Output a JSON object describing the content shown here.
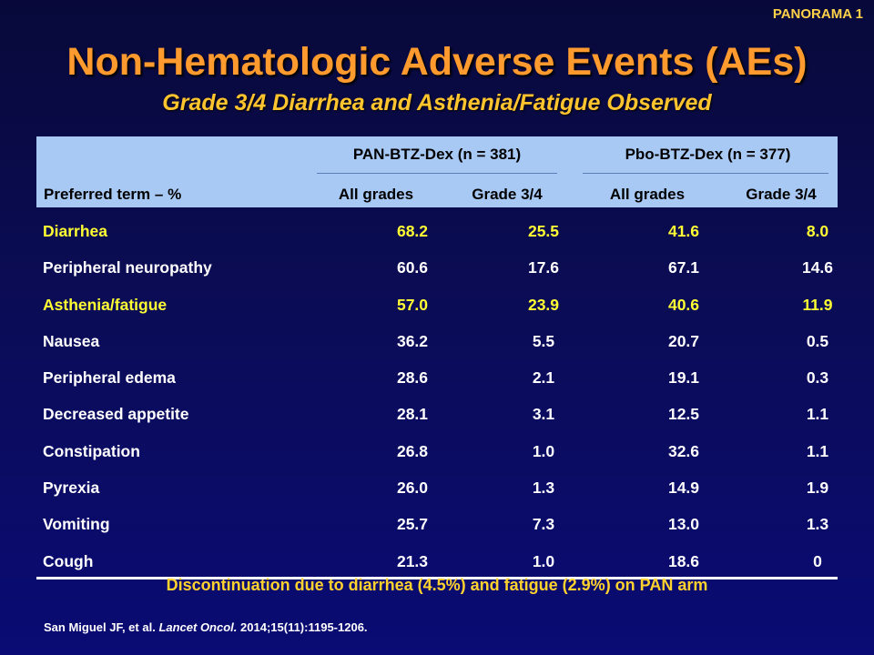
{
  "tag": "PANORAMA 1",
  "title": "Non-Hematologic Adverse Events (AEs)",
  "subtitle": "Grade 3/4 Diarrhea and Asthenia/Fatigue Observed",
  "table": {
    "group_headers": [
      "PAN-BTZ-Dex (n = 381)",
      "Pbo-BTZ-Dex  (n = 377)"
    ],
    "column_headers": [
      "Preferred term – %",
      "All grades",
      "Grade 3/4",
      "All grades",
      "Grade 3/4"
    ],
    "rows": [
      {
        "term": "Diarrhea",
        "values": [
          "68.2",
          "25.5",
          "41.6",
          "8.0"
        ],
        "highlight": true
      },
      {
        "term": "Peripheral neuropathy",
        "values": [
          "60.6",
          "17.6",
          "67.1",
          "14.6"
        ],
        "highlight": false
      },
      {
        "term": "Asthenia/fatigue",
        "values": [
          "57.0",
          "23.9",
          "40.6",
          "11.9"
        ],
        "highlight": true
      },
      {
        "term": "Nausea",
        "values": [
          "36.2",
          "5.5",
          "20.7",
          "0.5"
        ],
        "highlight": false
      },
      {
        "term": "Peripheral edema",
        "values": [
          "28.6",
          "2.1",
          "19.1",
          "0.3"
        ],
        "highlight": false
      },
      {
        "term": "Decreased appetite",
        "values": [
          "28.1",
          "3.1",
          "12.5",
          "1.1"
        ],
        "highlight": false
      },
      {
        "term": "Constipation",
        "values": [
          "26.8",
          "1.0",
          "32.6",
          "1.1"
        ],
        "highlight": false
      },
      {
        "term": "Pyrexia",
        "values": [
          "26.0",
          "1.3",
          "14.9",
          "1.9"
        ],
        "highlight": false
      },
      {
        "term": "Vomiting",
        "values": [
          "25.7",
          "7.3",
          "13.0",
          "1.3"
        ],
        "highlight": false
      },
      {
        "term": "Cough",
        "values": [
          "21.3",
          "1.0",
          "18.6",
          "0"
        ],
        "highlight": false
      }
    ]
  },
  "footnote": "Discontinuation due to diarrhea (4.5%)  and fatigue (2.9%)  on PAN arm",
  "citation": {
    "authors": "San Miguel JF, et al.",
    "journal": "Lancet Oncol.",
    "details": "2014;15(11):1195-1206."
  },
  "colors": {
    "title": "#ff9a2e",
    "subtitle": "#ffc42e",
    "highlight": "#ffff33",
    "header_bg": "#a9c9f5",
    "background": "#0b0c55"
  }
}
